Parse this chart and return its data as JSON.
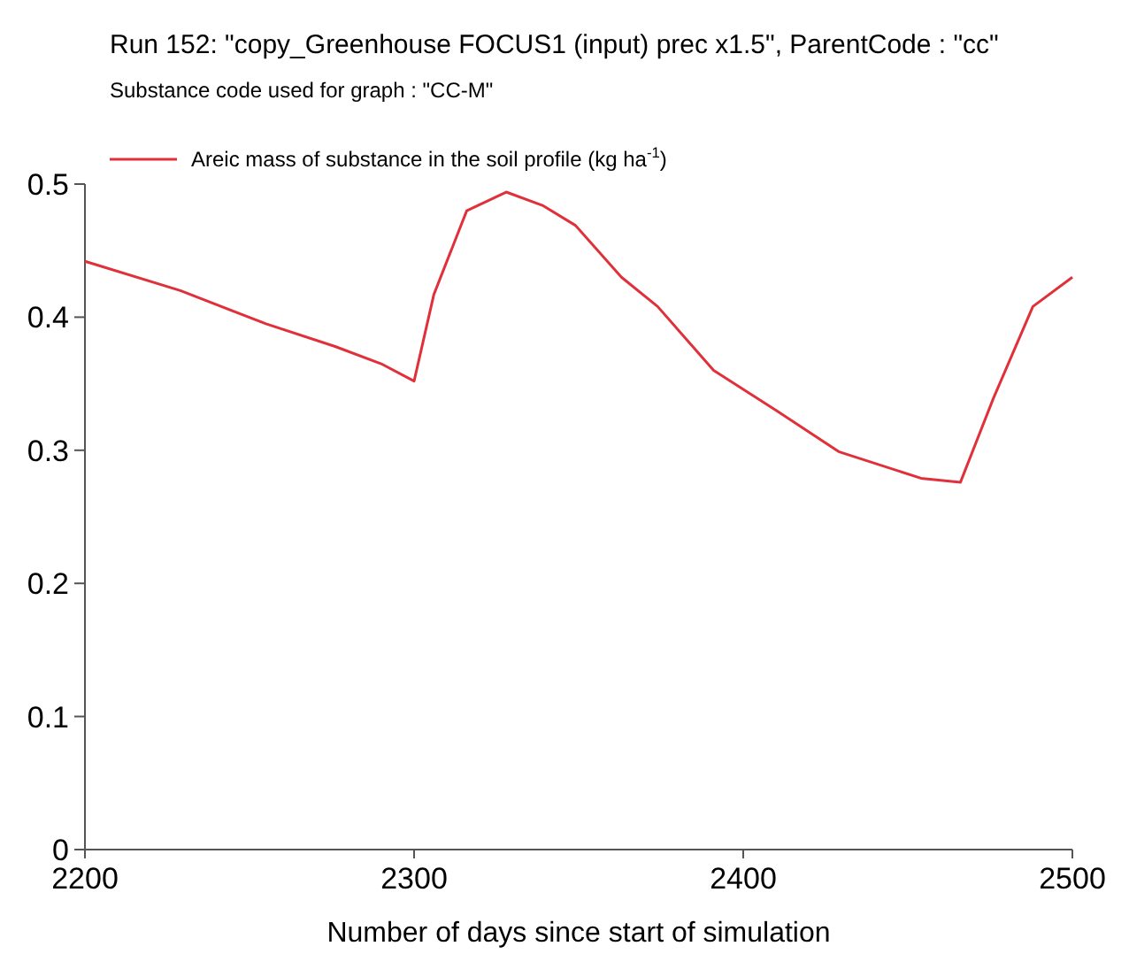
{
  "chart_data": {
    "type": "line",
    "title": "Run 152: \"copy_Greenhouse FOCUS1 (input) prec x1.5\", ParentCode : \"cc\"",
    "subtitle": "Substance code used for graph : \"CC-M\"",
    "xlabel": "Number of days since start of simulation",
    "x": [
      2200,
      2229,
      2255,
      2276,
      2290,
      2300,
      2306,
      2316,
      2328,
      2339,
      2349,
      2363,
      2374,
      2391,
      2410,
      2429,
      2454,
      2466,
      2476,
      2488,
      2500
    ],
    "series": [
      {
        "name": "Areic mass of substance in the soil profile (kg ha$^{-1}$)",
        "color": "#e0303a",
        "values": [
          0.442,
          0.42,
          0.395,
          0.378,
          0.365,
          0.352,
          0.417,
          0.48,
          0.494,
          0.484,
          0.469,
          0.43,
          0.408,
          0.36,
          0.33,
          0.299,
          0.279,
          0.276,
          0.339,
          0.408,
          0.43
        ]
      }
    ],
    "xlim": [
      2200,
      2500
    ],
    "xticks": [
      2200,
      2300,
      2400,
      2500
    ],
    "ylim": [
      0,
      0.5
    ],
    "yticks": [
      0,
      0.1,
      0.2,
      0.3,
      0.4,
      0.5
    ],
    "legend": "top left",
    "grid": false,
    "marker": "none",
    "line_style": "solid"
  }
}
